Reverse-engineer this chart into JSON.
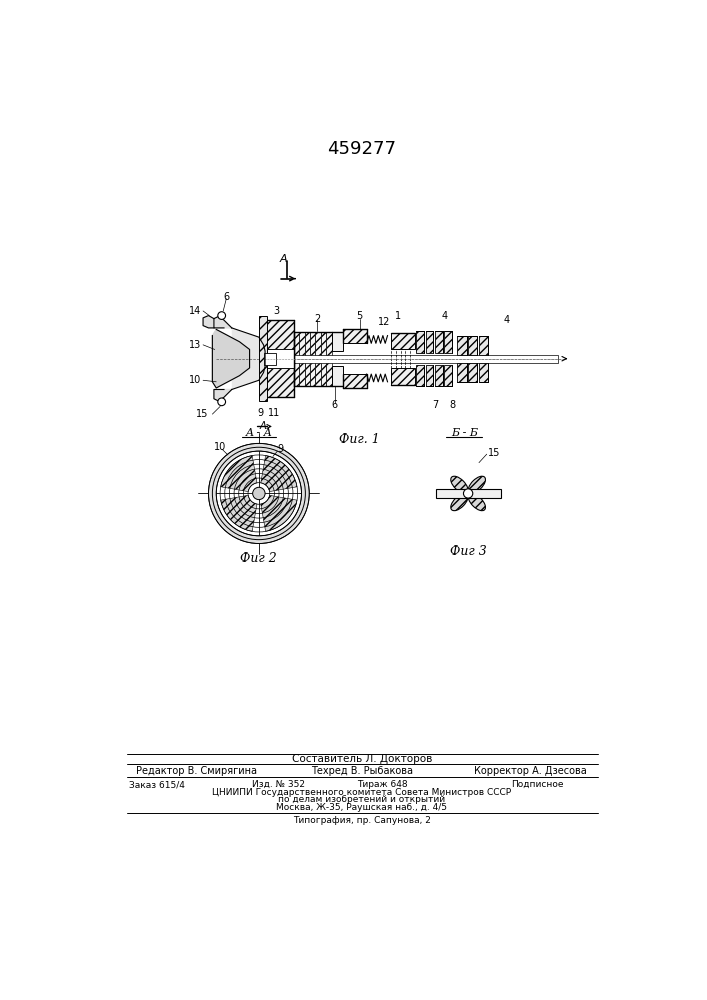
{
  "title": "459277",
  "fig1_caption": "Фиг. 1",
  "fig2_caption": "Фиг 2",
  "fig3_caption": "Фиг 3",
  "section_A_label": "A - A",
  "section_B_label": "Б - Б",
  "footer_composer": "Составитель Л. Докторов",
  "footer_editor": "Редактор В. Смирягина",
  "footer_tech": "Техред В. Рыбакова",
  "footer_corrector": "Корректор А. Дзесова",
  "footer_order": "Заказ 615/4",
  "footer_izd": "Изд. № 352",
  "footer_tirazh": "Тираж 648",
  "footer_podpisnoe": "Подписное",
  "footer_tsnipi": "ЦНИИПИ Государственного комитета Совета Министров СССР",
  "footer_po_delam": "по делам изобретений и открытий",
  "footer_moscow": "Москва, Ж-35, Раушская наб., д. 4/5",
  "footer_tipografia": "Типография, пр. Сапунова, 2",
  "bg_color": "#ffffff",
  "line_color": "#000000"
}
